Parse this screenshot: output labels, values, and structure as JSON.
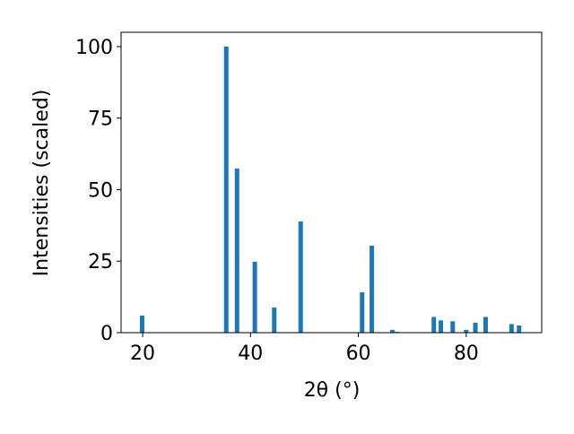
{
  "chart_data": {
    "type": "bar",
    "xlabel": "2θ (°)",
    "ylabel": "Intensities (scaled)",
    "x": [
      19.9,
      35.5,
      37.5,
      40.8,
      44.4,
      49.3,
      60.7,
      62.5,
      66.3,
      67.2,
      74.0,
      75.3,
      77.5,
      80.0,
      81.7,
      83.6,
      88.4,
      89.8
    ],
    "values": [
      6,
      100,
      57.4,
      24.8,
      8.8,
      38.9,
      14.1,
      30.4,
      1,
      0.3,
      5.5,
      4.3,
      4,
      1,
      3.5,
      5.5,
      3,
      2.5
    ],
    "color": "#1f77b4",
    "xlim": [
      16,
      94
    ],
    "ylim": [
      0,
      105
    ],
    "xticks": [
      20,
      40,
      60,
      80
    ],
    "yticks": [
      0,
      25,
      50,
      75,
      100
    ]
  }
}
